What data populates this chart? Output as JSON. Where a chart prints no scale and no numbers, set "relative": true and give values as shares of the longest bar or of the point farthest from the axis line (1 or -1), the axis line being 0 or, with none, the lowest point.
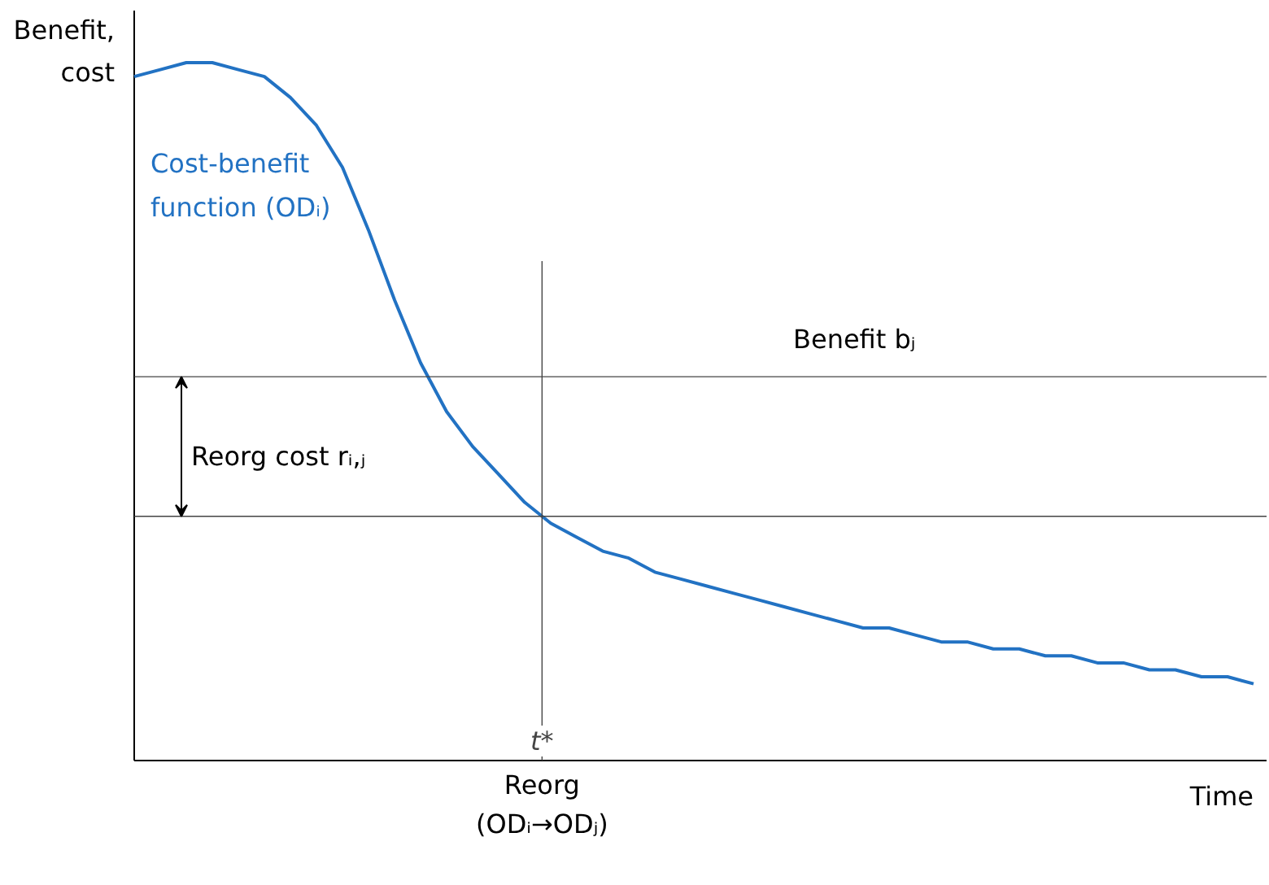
{
  "chart_data": {
    "type": "line",
    "relative": true,
    "ylabel": "Benefit, cost",
    "xlabel": "Time",
    "categories": [
      null,
      null,
      null,
      null,
      null,
      null,
      null,
      null,
      null,
      null,
      null,
      null,
      null,
      null,
      null,
      null,
      null,
      null,
      null,
      null,
      null,
      null,
      null,
      null,
      null,
      null,
      null,
      null,
      null,
      null,
      null,
      null,
      null,
      null,
      null,
      null,
      null,
      null,
      null,
      null,
      null,
      null,
      null,
      null
    ],
    "series": [
      {
        "name": "Cost-benefit function (ODᵢ)",
        "color": "#2272c3",
        "values": [
          0.98,
          0.99,
          1.0,
          1.0,
          0.99,
          0.98,
          0.95,
          0.91,
          0.85,
          0.76,
          0.66,
          0.57,
          0.5,
          0.45,
          0.41,
          0.37,
          0.34,
          0.32,
          0.3,
          0.29,
          0.27,
          0.26,
          0.25,
          0.24,
          0.23,
          0.22,
          0.21,
          0.2,
          0.19,
          0.19,
          0.18,
          0.17,
          0.17,
          0.16,
          0.16,
          0.15,
          0.15,
          0.14,
          0.14,
          0.13,
          0.13,
          0.12,
          0.12,
          0.11
        ]
      }
    ],
    "ref_lines": [
      {
        "axis": "y",
        "value": 0.55,
        "label": "Benefit bⱼ"
      },
      {
        "axis": "y",
        "value": 0.35
      }
    ],
    "annotations": [
      "Reorg cost rᵢ,ⱼ",
      "t*",
      "Reorg (ODᵢ→ODⱼ)"
    ],
    "legend": false,
    "marker": "none",
    "line_style": "solid"
  }
}
